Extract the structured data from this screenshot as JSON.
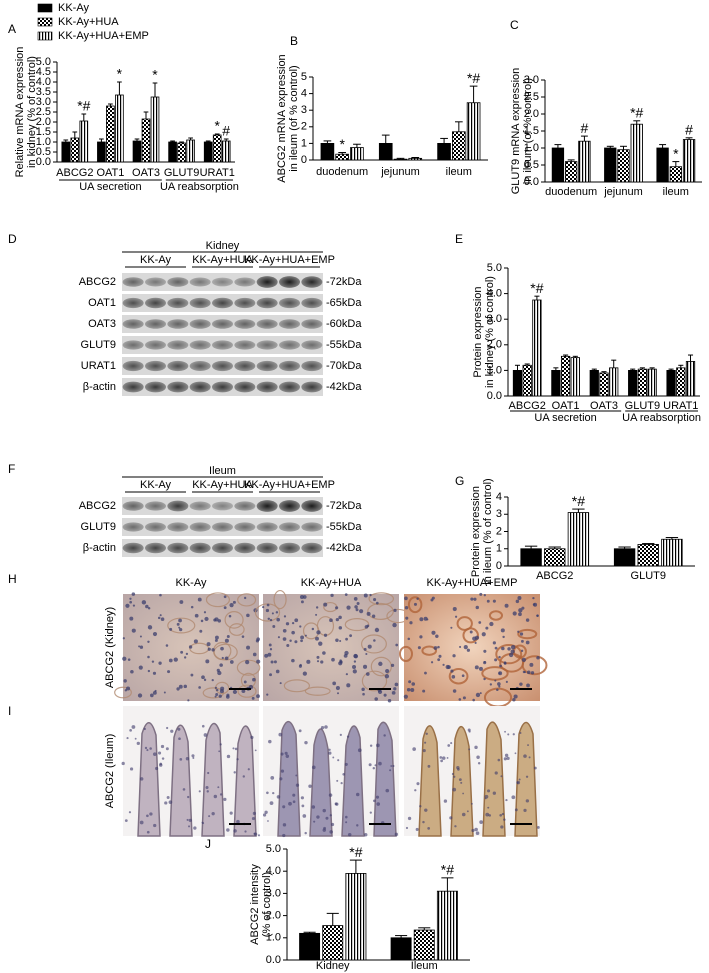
{
  "legend": [
    {
      "name": "KK-Ay",
      "pattern": "solid"
    },
    {
      "name": "KK-Ay+HUA",
      "pattern": "checker"
    },
    {
      "name": "KK-Ay+HUA+EMP",
      "pattern": "stripe"
    }
  ],
  "chart_data": [
    {
      "type": "bar",
      "panel": "A",
      "ylabel": [
        "Relative mRNA expression",
        "in kidney (% of control)"
      ],
      "groups": [
        {
          "label": "UA secretion",
          "categories": [
            "ABCG2",
            "OAT1",
            "OAT3"
          ]
        },
        {
          "label": "UA reabsorption",
          "categories": [
            "GLUT9",
            "URAT1"
          ]
        }
      ],
      "ylim": [
        0,
        5
      ],
      "yticks": [
        {
          "value": 0,
          "label": "0.0"
        },
        {
          "value": 0.5,
          "label": "0.5"
        },
        {
          "value": 1,
          "label": "1.0"
        },
        {
          "value": 1.5,
          "label": "1.5"
        },
        {
          "value": 2,
          "label": "2.0"
        },
        {
          "value": 2.5,
          "label": "2.5"
        },
        {
          "value": 3,
          "label": "3.0"
        },
        {
          "value": 3.5,
          "label": "3.5"
        },
        {
          "value": 4,
          "label": "4.0"
        },
        {
          "value": 4.5,
          "label": "4.5"
        },
        {
          "value": 5,
          "label": "5.0"
        }
      ],
      "series": [
        {
          "pattern": "solid",
          "values": [
            1.0,
            1.0,
            1.05,
            1.0,
            1.0
          ],
          "error": [
            0.1,
            0.15,
            0.1,
            0.05,
            0.05
          ],
          "sig": [
            null,
            null,
            null,
            null,
            null
          ]
        },
        {
          "pattern": "checker",
          "values": [
            1.2,
            2.8,
            2.15,
            0.95,
            1.35
          ],
          "error": [
            0.3,
            0.1,
            0.35,
            0.05,
            0.05
          ],
          "sig": [
            null,
            null,
            null,
            null,
            "*"
          ]
        },
        {
          "pattern": "stripe",
          "values": [
            2.05,
            3.35,
            3.25,
            1.1,
            1.05
          ],
          "error": [
            0.35,
            0.65,
            0.7,
            0.1,
            0.1
          ],
          "sig": [
            "*#",
            "*",
            "*",
            null,
            "#"
          ]
        }
      ]
    },
    {
      "type": "bar",
      "panel": "B",
      "ylabel": [
        "ABCG2 mRNA expression",
        "in ileum (of % control)"
      ],
      "categories": [
        "duodenum",
        "jejunum",
        "ileum"
      ],
      "ylim": [
        0,
        5
      ],
      "yticks": [
        0,
        1,
        2,
        3,
        4,
        5
      ],
      "series": [
        {
          "pattern": "solid",
          "values": [
            1.0,
            1.0,
            1.0
          ],
          "error": [
            0.15,
            0.5,
            0.3
          ],
          "sig": [
            null,
            null,
            null
          ]
        },
        {
          "pattern": "checker",
          "values": [
            0.35,
            0.05,
            1.7
          ],
          "error": [
            0.1,
            0.05,
            0.6
          ],
          "sig": [
            "*",
            null,
            null
          ]
        },
        {
          "pattern": "stripe",
          "values": [
            0.75,
            0.1,
            3.45
          ],
          "error": [
            0.2,
            0.05,
            1.0
          ],
          "sig": [
            null,
            null,
            "*#"
          ]
        }
      ]
    },
    {
      "type": "bar",
      "panel": "C",
      "ylabel": [
        "GLUT9 mRNA expression",
        "in ileum (of % control)"
      ],
      "categories": [
        "duodenum",
        "jejunum",
        "ileum"
      ],
      "ylim": [
        0,
        3
      ],
      "yticks": [
        {
          "value": 0,
          "label": "0.0"
        },
        {
          "value": 0.5,
          "label": "0.5"
        },
        {
          "value": 1,
          "label": "1.0"
        },
        {
          "value": 1.5,
          "label": "1.5"
        },
        {
          "value": 2,
          "label": "2.0"
        },
        {
          "value": 2.5,
          "label": "2.5"
        },
        {
          "value": 3,
          "label": "3.0"
        }
      ],
      "series": [
        {
          "pattern": "solid",
          "values": [
            1.0,
            1.0,
            1.0
          ],
          "error": [
            0.1,
            0.05,
            0.1
          ],
          "sig": [
            null,
            null,
            null
          ]
        },
        {
          "pattern": "checker",
          "values": [
            0.6,
            0.95,
            0.45
          ],
          "error": [
            0.05,
            0.1,
            0.15
          ],
          "sig": [
            null,
            null,
            "*"
          ]
        },
        {
          "pattern": "stripe",
          "values": [
            1.2,
            1.7,
            1.25
          ],
          "error": [
            0.15,
            0.1,
            0.05
          ],
          "sig": [
            "#",
            "*#",
            "#"
          ]
        }
      ]
    },
    {
      "type": "bar",
      "panel": "E",
      "ylabel": [
        "Protein expression",
        "in kidney (% of control)"
      ],
      "groups": [
        {
          "label": "UA secretion",
          "categories": [
            "ABCG2",
            "OAT1",
            "OAT3"
          ]
        },
        {
          "label": "UA reabsorption",
          "categories": [
            "GLUT9",
            "URAT1"
          ]
        }
      ],
      "ylim": [
        0,
        5
      ],
      "yticks": [
        {
          "value": 0,
          "label": "0.0"
        },
        {
          "value": 1,
          "label": "1.0"
        },
        {
          "value": 2,
          "label": "2.0"
        },
        {
          "value": 3,
          "label": "3.0"
        },
        {
          "value": 4,
          "label": "4.0"
        },
        {
          "value": 5,
          "label": "5.0"
        }
      ],
      "series": [
        {
          "pattern": "solid",
          "values": [
            1.0,
            1.0,
            1.0,
            1.0,
            1.0
          ],
          "error": [
            0.2,
            0.1,
            0.05,
            0.05,
            0.05
          ],
          "sig": [
            null,
            null,
            null,
            null,
            null
          ]
        },
        {
          "pattern": "checker",
          "values": [
            1.2,
            1.55,
            0.9,
            1.05,
            1.1
          ],
          "error": [
            0.05,
            0.05,
            0.05,
            0.05,
            0.1
          ],
          "sig": [
            null,
            null,
            null,
            null,
            null
          ]
        },
        {
          "pattern": "stripe",
          "values": [
            3.75,
            1.5,
            1.1,
            1.05,
            1.35
          ],
          "error": [
            0.15,
            0.05,
            0.3,
            0.05,
            0.25
          ],
          "sig": [
            "*#",
            null,
            null,
            null,
            null
          ]
        }
      ]
    },
    {
      "type": "bar",
      "panel": "G",
      "ylabel": [
        "Protein expression",
        "in ileum (% of control)"
      ],
      "categories": [
        "ABCG2",
        "GLUT9"
      ],
      "ylim": [
        0,
        4
      ],
      "yticks": [
        0,
        1,
        2,
        3,
        4
      ],
      "series": [
        {
          "pattern": "solid",
          "values": [
            1.0,
            1.0
          ],
          "error": [
            0.15,
            0.1
          ],
          "sig": [
            null,
            null
          ]
        },
        {
          "pattern": "checker",
          "values": [
            1.0,
            1.25
          ],
          "error": [
            0.1,
            0.05
          ],
          "sig": [
            null,
            null
          ]
        },
        {
          "pattern": "stripe",
          "values": [
            3.1,
            1.55
          ],
          "error": [
            0.2,
            0.1
          ],
          "sig": [
            "*#",
            null
          ]
        }
      ]
    },
    {
      "type": "bar",
      "panel": "J",
      "ylabel": [
        "ABCG2  intensity",
        "(% of control)"
      ],
      "categories": [
        "Kidney",
        "Ileum"
      ],
      "ylim": [
        0,
        5
      ],
      "yticks": [
        {
          "value": 0,
          "label": "0.0"
        },
        {
          "value": 1,
          "label": "1.0"
        },
        {
          "value": 2,
          "label": "2.0"
        },
        {
          "value": 3,
          "label": "3.0"
        },
        {
          "value": 4,
          "label": "4.0"
        },
        {
          "value": 5,
          "label": "5.0"
        }
      ],
      "series": [
        {
          "pattern": "solid",
          "values": [
            1.2,
            1.0
          ],
          "error": [
            0.05,
            0.1
          ],
          "sig": [
            null,
            null
          ]
        },
        {
          "pattern": "checker",
          "values": [
            1.55,
            1.35
          ],
          "error": [
            0.55,
            0.1
          ],
          "sig": [
            null,
            null
          ]
        },
        {
          "pattern": "stripe",
          "values": [
            3.9,
            3.1
          ],
          "error": [
            0.6,
            0.6
          ],
          "sig": [
            "*#",
            "*#"
          ]
        }
      ]
    }
  ],
  "blots": [
    {
      "panel": "D",
      "title": "Kidney",
      "groups": [
        "KK-Ay",
        "KK-Ay+HUA",
        "KK-Ay+HUA+EMP"
      ],
      "rows": [
        {
          "label": "ABCG2",
          "size": "-72kDa"
        },
        {
          "label": "OAT1",
          "size": "-65kDa"
        },
        {
          "label": "OAT3",
          "size": "-60kDa"
        },
        {
          "label": "GLUT9",
          "size": "-55kDa"
        },
        {
          "label": "URAT1",
          "size": "-70kDa"
        },
        {
          "label": "β-actin",
          "size": "-42kDa"
        }
      ]
    },
    {
      "panel": "F",
      "title": "Ileum",
      "groups": [
        "KK-Ay",
        "KK-Ay+HUA",
        "KK-Ay+HUA+EMP"
      ],
      "rows": [
        {
          "label": "ABCG2",
          "size": "-72kDa"
        },
        {
          "label": "GLUT9",
          "size": "-55kDa"
        },
        {
          "label": "β-actin",
          "size": "-42kDa"
        }
      ]
    }
  ],
  "histology": {
    "panels": [
      "H",
      "I"
    ],
    "columns": [
      "KK-Ay",
      "KK-Ay+HUA",
      "KK-Ay+HUA+EMP"
    ],
    "rows": [
      "ABCG2 (Kidney)",
      "ABCG2 (Ileum)"
    ]
  }
}
